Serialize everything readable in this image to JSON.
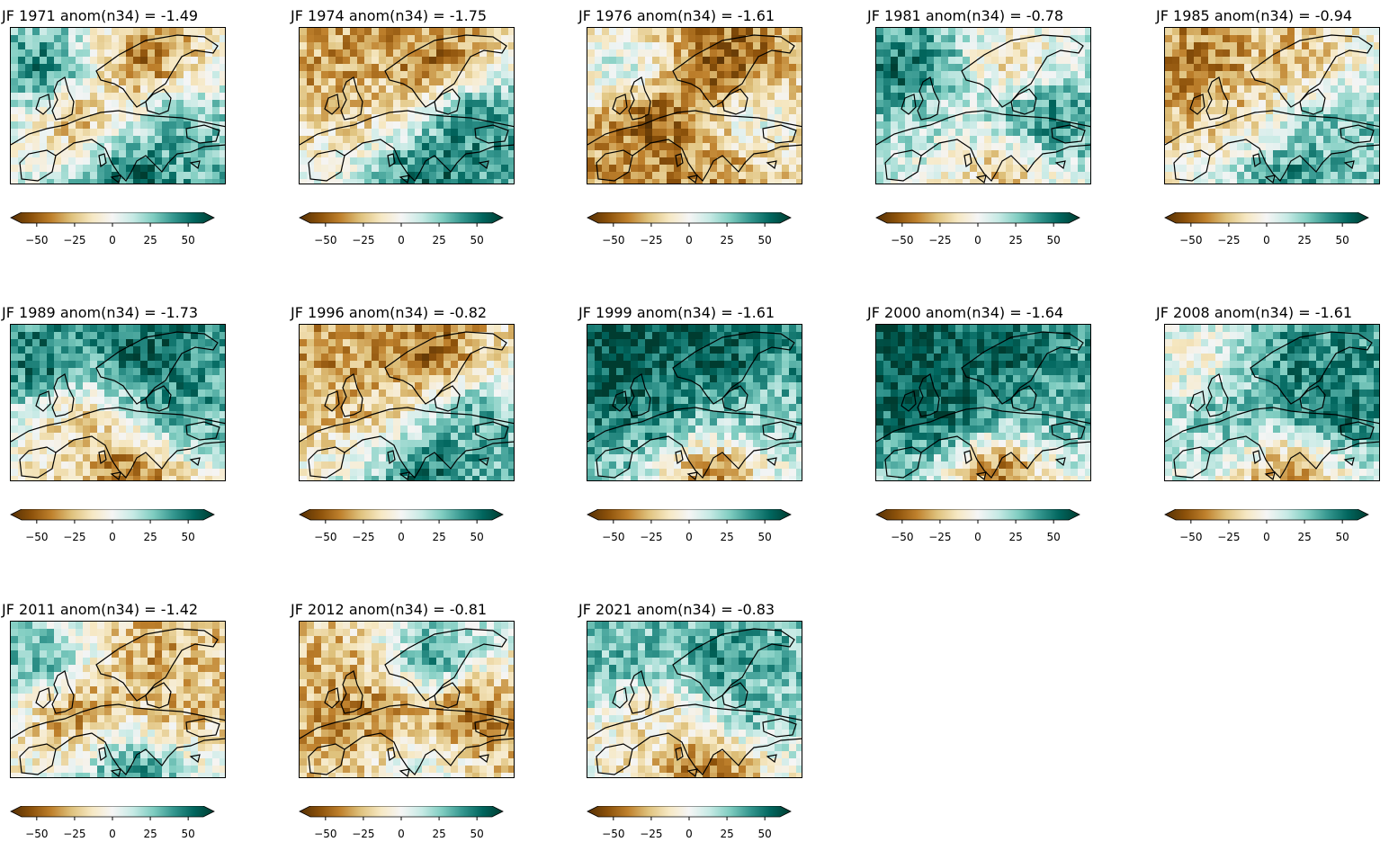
{
  "colors": {
    "brown_dark": "#543005",
    "brown": "#8c510a",
    "tan": "#bf812d",
    "sand": "#dfc27d",
    "cream": "#f6e8c3",
    "white": "#f5f5f5",
    "mint": "#c7eae5",
    "teal_light": "#80cdc1",
    "teal": "#35978f",
    "teal_dark": "#01665e",
    "green_dark": "#003c30",
    "coastline": "#000000"
  },
  "colorbar": {
    "ticks": [
      "−50",
      "−25",
      "0",
      "25",
      "50"
    ],
    "tick_values": [
      -50,
      -25,
      0,
      25,
      50
    ],
    "range": [
      -60,
      60
    ],
    "extend": "both"
  },
  "panels": [
    {
      "title": "JF 1971   anom(n34) = -1.49",
      "pattern": [
        1,
        -1,
        0.6,
        -0.8,
        1
      ]
    },
    {
      "title": "JF 1974   anom(n34) = -1.75",
      "pattern": [
        -0.6,
        -1,
        1,
        -0.4,
        1
      ]
    },
    {
      "title": "JF 1976   anom(n34) = -1.61",
      "pattern": [
        0.4,
        -1,
        0.3,
        -1,
        -0.6
      ]
    },
    {
      "title": "JF 1981   anom(n34) = -0.78",
      "pattern": [
        1,
        -0.5,
        1,
        0.2,
        -0.6
      ]
    },
    {
      "title": "JF 1985   anom(n34) = -0.94",
      "pattern": [
        -0.8,
        -0.5,
        0.6,
        -0.4,
        0.8
      ]
    },
    {
      "title": "JF 1989   anom(n34) = -1.73",
      "pattern": [
        1,
        1,
        0.8,
        -0.6,
        -1
      ]
    },
    {
      "title": "JF 1996   anom(n34) = -0.82",
      "pattern": [
        -0.6,
        -1,
        0.8,
        -0.5,
        1
      ]
    },
    {
      "title": "JF 1999   anom(n34) = -1.61",
      "pattern": [
        1,
        1,
        0.4,
        0.8,
        -0.9
      ]
    },
    {
      "title": "JF 2000   anom(n34) = -1.64",
      "pattern": [
        1,
        0.9,
        0.5,
        1,
        -1
      ]
    },
    {
      "title": "JF 2008   anom(n34) = -1.61",
      "pattern": [
        -0.2,
        0.8,
        1,
        0.6,
        -0.9
      ]
    },
    {
      "title": "JF 2011   anom(n34) = -1.42",
      "pattern": [
        0.8,
        -0.6,
        -0.5,
        -0.9,
        0.9
      ]
    },
    {
      "title": "JF 2012   anom(n34) = -0.81",
      "pattern": [
        -0.5,
        1,
        -1,
        -0.8,
        0.2
      ]
    },
    {
      "title": "JF 2021   anom(n34) = -0.83",
      "pattern": [
        0.6,
        0.8,
        0.6,
        -0.4,
        -0.9
      ]
    }
  ]
}
